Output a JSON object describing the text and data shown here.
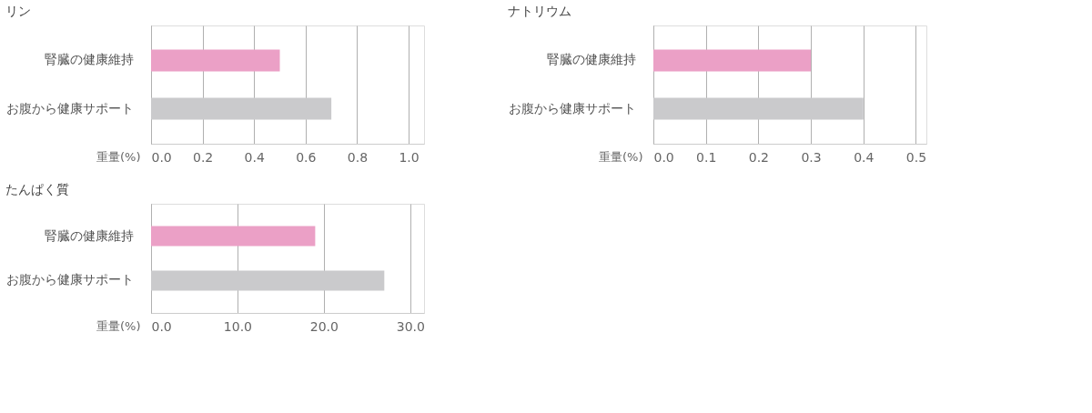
{
  "chart_data": [
    {
      "type": "bar",
      "orientation": "horizontal",
      "title": "リン",
      "xlabel": "重量(%)",
      "categories": [
        "腎臓の健康維持",
        "お腹から健康サポート"
      ],
      "values": [
        0.5,
        0.7
      ],
      "colors": [
        "#eba0c6",
        "#cacacc"
      ],
      "xlim": [
        0,
        1.06
      ],
      "xticks": [
        {
          "value": 0,
          "label": "0.0"
        },
        0.2,
        0.4,
        0.6,
        0.8,
        {
          "value": 1,
          "label": "1.0"
        }
      ],
      "grid": "x"
    },
    {
      "type": "bar",
      "orientation": "horizontal",
      "title": "ナトリウム",
      "xlabel": "重量(%)",
      "categories": [
        "腎臓の健康維持",
        "お腹から健康サポート"
      ],
      "values": [
        0.3,
        0.4
      ],
      "colors": [
        "#eba0c6",
        "#cacacc"
      ],
      "xlim": [
        0,
        0.52
      ],
      "xticks": [
        {
          "value": 0,
          "label": "0.0"
        },
        0.1,
        0.2,
        0.3,
        0.4,
        0.5
      ],
      "grid": "x"
    },
    {
      "type": "bar",
      "orientation": "horizontal",
      "title": "たんぱく質",
      "xlabel": "重量(%)",
      "categories": [
        "腎臓の健康維持",
        "お腹から健康サポート"
      ],
      "values": [
        19,
        27
      ],
      "colors": [
        "#eba0c6",
        "#cacacc"
      ],
      "xlim": [
        0,
        31.6
      ],
      "xticks": [
        {
          "value": 0,
          "label": "0.0"
        },
        {
          "value": 10,
          "label": "10.0"
        },
        {
          "value": 20,
          "label": "20.0"
        },
        {
          "value": 30,
          "label": "30.0"
        }
      ],
      "grid": "x"
    }
  ]
}
